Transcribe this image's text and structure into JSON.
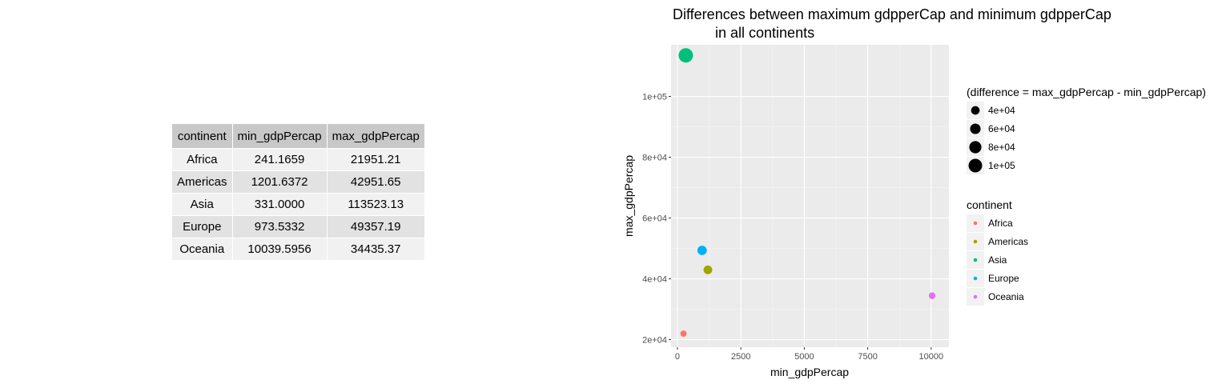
{
  "table": {
    "headers": [
      "continent",
      "min_gdpPercap",
      "max_gdpPercap"
    ],
    "rows": [
      [
        "Africa",
        "241.1659",
        "21951.21"
      ],
      [
        "Americas",
        "1201.6372",
        "42951.65"
      ],
      [
        "Asia",
        "331.0000",
        "113523.13"
      ],
      [
        "Europe",
        "973.5332",
        "49357.19"
      ],
      [
        "Oceania",
        "10039.5956",
        "34435.37"
      ]
    ]
  },
  "chart_data": {
    "type": "scatter",
    "title": "Differences between maximum gdpperCap and minimum gdpperCap",
    "title_line2": "in all continents",
    "xlabel": "min_gdpPercap",
    "ylabel": "max_gdpPercap",
    "xlim": [
      -250,
      10700
    ],
    "ylim": [
      17500,
      117000
    ],
    "x_ticks": [
      0,
      2500,
      5000,
      7500,
      10000
    ],
    "x_tick_labels": [
      "0",
      "2500",
      "5000",
      "7500",
      "10000"
    ],
    "y_ticks": [
      20000,
      40000,
      60000,
      80000,
      100000
    ],
    "y_tick_labels": [
      "2e+04",
      "4e+04",
      "6e+04",
      "8e+04",
      "1e+05"
    ],
    "grid": true,
    "legend_position": "right",
    "points": [
      {
        "continent": "Africa",
        "x": 241.1659,
        "y": 21951.21,
        "difference": 21710.04,
        "color": "#F8766D"
      },
      {
        "continent": "Americas",
        "x": 1201.6372,
        "y": 42951.65,
        "difference": 41750.01,
        "color": "#A3A500"
      },
      {
        "continent": "Asia",
        "x": 331.0,
        "y": 113523.13,
        "difference": 113192.13,
        "color": "#00BF7D"
      },
      {
        "continent": "Europe",
        "x": 973.5332,
        "y": 49357.19,
        "difference": 48383.66,
        "color": "#00B0F6"
      },
      {
        "continent": "Oceania",
        "x": 10039.5956,
        "y": 34435.37,
        "difference": 24395.77,
        "color": "#E76BF3"
      }
    ],
    "size_legend": {
      "title": "(difference = max_gdpPercap - min_gdpPercap)",
      "values": [
        40000,
        60000,
        80000,
        100000
      ],
      "labels": [
        "4e+04",
        "6e+04",
        "8e+04",
        "1e+05"
      ],
      "color": "#000000"
    },
    "color_legend": {
      "title": "continent",
      "entries": [
        {
          "label": "Africa",
          "color": "#F8766D"
        },
        {
          "label": "Americas",
          "color": "#A3A500"
        },
        {
          "label": "Asia",
          "color": "#00BF7D"
        },
        {
          "label": "Europe",
          "color": "#00B0F6"
        },
        {
          "label": "Oceania",
          "color": "#E76BF3"
        }
      ]
    }
  }
}
